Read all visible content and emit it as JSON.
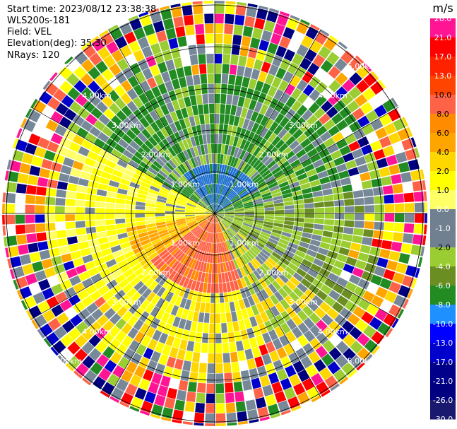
{
  "header": {
    "start_time": "Start time: 2023/08/12 23:38:38",
    "instrument": "WLS200s-181",
    "field": "Field: VEL",
    "elevation": "Elevation(deg): 35.30",
    "nrays": "NRays: 120"
  },
  "colorbar": {
    "unit": "m/s",
    "ticks": [
      "26.0",
      "21.0",
      "17.0",
      "13.0",
      "10.0",
      "8.0",
      "6.0",
      "4.0",
      "2.0",
      "1.0",
      "0.0",
      "-1.0",
      "-2.0",
      "-4.0",
      "-6.0",
      "-8.0",
      "-10.0",
      "-13.0",
      "-17.0",
      "-21.0",
      "-26.0",
      "-30.0"
    ],
    "colors": [
      "#ff1493",
      "#ff0000",
      "#ff2200",
      "#ff4400",
      "#ff6347",
      "#ff8c00",
      "#ffa500",
      "#ffd700",
      "#ffff00",
      "#ffff66",
      "#708090",
      "#708090",
      "#9acd32",
      "#6b8e23",
      "#228b22",
      "#1e90ff",
      "#0000ff",
      "#0000cd",
      "#00008b",
      "#000080",
      "#191970"
    ]
  },
  "chart_data": {
    "type": "polar-ppi",
    "field": "VEL",
    "unit": "m/s",
    "nrays": 120,
    "range_rings_km": [
      1.0,
      2.0,
      3.0,
      4.0,
      5.0
    ],
    "ring_labels": [
      "1.00km",
      "2.00km",
      "3.00km",
      "4.00km",
      "5.00km"
    ],
    "max_range_km": 5.1,
    "grid": true,
    "pattern": "Negative velocities (blue, about -8 to -10 m/s) north of the lidar, positive velocities (red/orange, about 8 to 13 m/s) south of the lidar, yellow (2 to 6 m/s) to the west, green (-2 to -6 m/s) to the east, noisy multicolor speckle beyond about 4 km range."
  }
}
